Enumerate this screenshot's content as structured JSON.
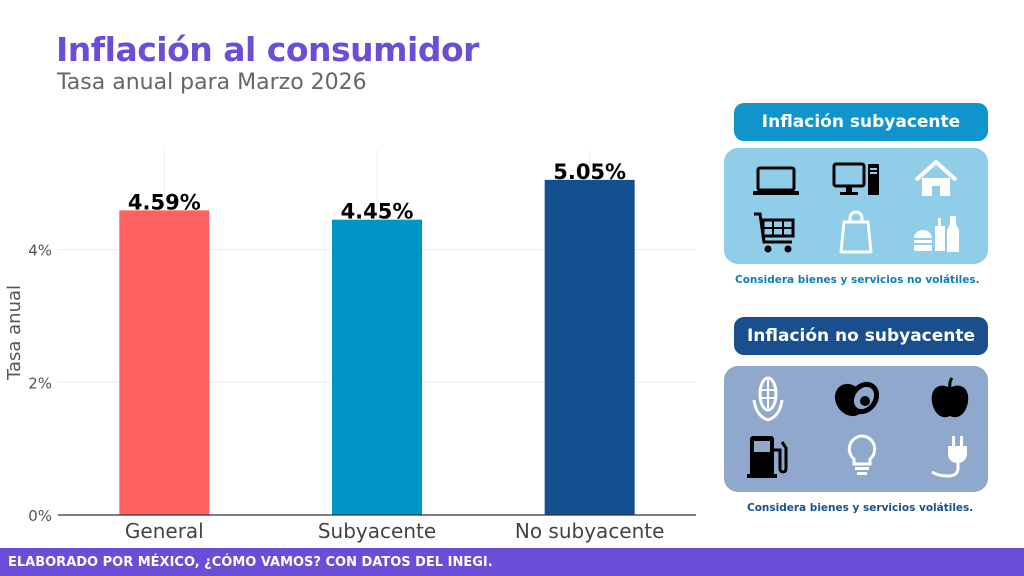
{
  "header": {
    "title": "Inflación al consumidor",
    "subtitle": "Tasa anual para Marzo 2026"
  },
  "colors": {
    "title": "#6b4ed8",
    "general": "#ff6060",
    "subyacente": "#0095c8",
    "no_subyacente": "#14508f",
    "panel_light_blue": "#8fcde8",
    "panel_header_blue": "#0f95cc",
    "panel_dark_blue": "#1a4f8f",
    "panel_gray_blue": "#8fa8cc",
    "footer": "#6b4ed8"
  },
  "chart_data": {
    "type": "bar",
    "title": "Inflación al consumidor",
    "subtitle": "Tasa anual para Marzo 2026",
    "categories": [
      "General",
      "Subyacente",
      "No subyacente"
    ],
    "values": [
      4.59,
      4.45,
      5.05
    ],
    "data_labels": [
      "4.59%",
      "4.45%",
      "5.05%"
    ],
    "xlabel": "",
    "ylabel": "Tasa anual",
    "ylim": [
      0,
      5.5
    ],
    "yticks": [
      0,
      2,
      4
    ],
    "ytick_labels": [
      "0%",
      "2%",
      "4%"
    ],
    "grid": true
  },
  "panels": {
    "subyacente": {
      "header": "Inflación subyacente",
      "note": "Considera bienes y servicios no volátiles.",
      "icons": [
        "laptop-icon",
        "desktop-computer-icon",
        "house-icon",
        "shopping-cart-icon",
        "shopping-bag-icon",
        "food-and-drinks-icon"
      ]
    },
    "no_subyacente": {
      "header": "Inflación no subyacente",
      "note": "Considera bienes y servicios volátiles.",
      "icons": [
        "corn-icon",
        "avocado-icon",
        "apple-icon",
        "gas-pump-icon",
        "light-bulb-icon",
        "electric-plug-icon"
      ]
    }
  },
  "footer": {
    "text": "ELABORADO POR MÉXICO, ¿CÓMO VAMOS? CON DATOS DEL INEGI."
  }
}
